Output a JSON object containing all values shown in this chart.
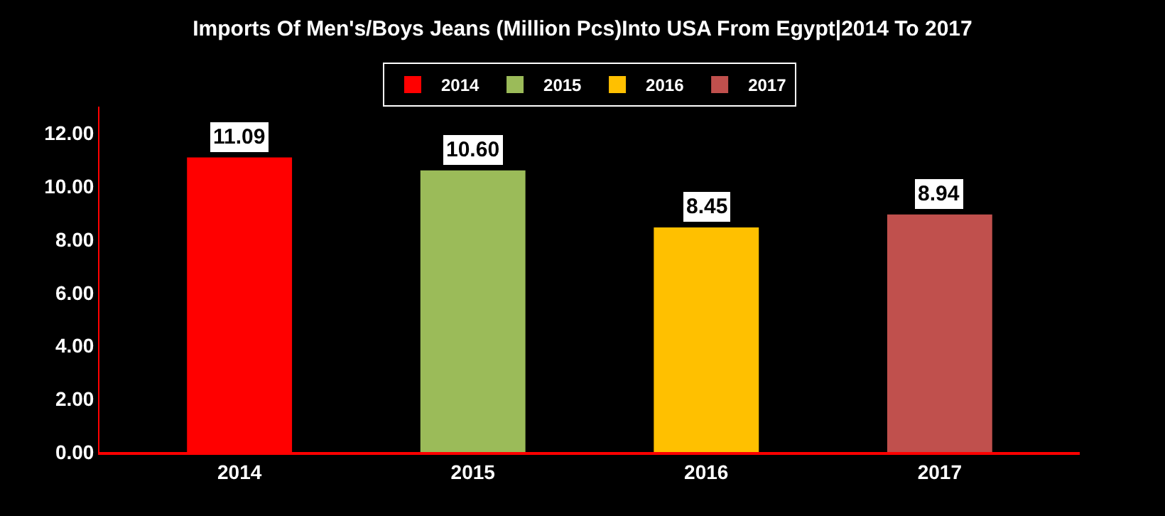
{
  "chart_data": {
    "type": "bar",
    "title": "Imports Of Men's/Boys Jeans (Million Pcs)Into USA From Egypt|2014 To 2017",
    "categories": [
      "2014",
      "2015",
      "2016",
      "2017"
    ],
    "series": [
      {
        "name": "2014",
        "color": "#ff0000",
        "values": [
          11.09,
          null,
          null,
          null
        ],
        "value_labels": [
          "11.09",
          null,
          null,
          null
        ]
      },
      {
        "name": "2015",
        "color": "#9bbb59",
        "values": [
          null,
          10.6,
          null,
          null
        ],
        "value_labels": [
          null,
          "10.60",
          null,
          null
        ]
      },
      {
        "name": "2016",
        "color": "#ffc000",
        "values": [
          null,
          null,
          8.45,
          null
        ],
        "value_labels": [
          null,
          null,
          "8.45",
          null
        ]
      },
      {
        "name": "2017",
        "color": "#c0504d",
        "values": [
          null,
          null,
          null,
          8.94
        ],
        "value_labels": [
          null,
          null,
          null,
          "8.94"
        ]
      }
    ],
    "ylim": [
      0,
      13
    ],
    "yticks": [
      {
        "value": 0,
        "label": "0.00"
      },
      {
        "value": 2,
        "label": "2.00"
      },
      {
        "value": 4,
        "label": "4.00"
      },
      {
        "value": 6,
        "label": "6.00"
      },
      {
        "value": 8,
        "label": "8.00"
      },
      {
        "value": 10,
        "label": "10.00"
      },
      {
        "value": 12,
        "label": "12.00"
      }
    ],
    "grid": false,
    "legend": "top"
  }
}
